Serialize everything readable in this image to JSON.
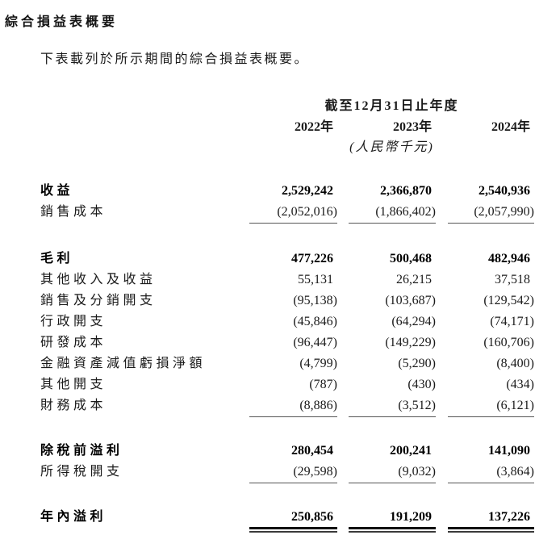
{
  "page": {
    "title": "綜合損益表概要",
    "intro": "下表載列於所示期間的綜合損益表概要。"
  },
  "table": {
    "period_header": "截至12月31日止年度",
    "unit_note": "(人民幣千元)",
    "years": [
      "2022年",
      "2023年",
      "2024年"
    ],
    "rows": [
      {
        "label": "收益",
        "values": [
          "2,529,242",
          "2,366,870",
          "2,540,936"
        ],
        "style": "bold"
      },
      {
        "label": "銷售成本",
        "values": [
          "(2,052,016)",
          "(1,866,402)",
          "(2,057,990)"
        ],
        "style": "underline"
      },
      {
        "label": "毛利",
        "values": [
          "477,226",
          "500,468",
          "482,946"
        ],
        "style": "bold"
      },
      {
        "label": "其他收入及收益",
        "values": [
          "55,131",
          "26,215",
          "37,518"
        ],
        "style": "normal"
      },
      {
        "label": "銷售及分銷開支",
        "values": [
          "(95,138)",
          "(103,687)",
          "(129,542)"
        ],
        "style": "normal"
      },
      {
        "label": "行政開支",
        "values": [
          "(45,846)",
          "(64,294)",
          "(74,171)"
        ],
        "style": "normal"
      },
      {
        "label": "研發成本",
        "values": [
          "(96,447)",
          "(149,229)",
          "(160,706)"
        ],
        "style": "normal"
      },
      {
        "label": "金融資產減值虧損淨額",
        "values": [
          "(4,799)",
          "(5,290)",
          "(8,400)"
        ],
        "style": "normal"
      },
      {
        "label": "其他開支",
        "values": [
          "(787)",
          "(430)",
          "(434)"
        ],
        "style": "normal"
      },
      {
        "label": "財務成本",
        "values": [
          "(8,886)",
          "(3,512)",
          "(6,121)"
        ],
        "style": "underline"
      },
      {
        "label": "除稅前溢利",
        "values": [
          "280,454",
          "200,241",
          "141,090"
        ],
        "style": "bold"
      },
      {
        "label": "所得稅開支",
        "values": [
          "(29,598)",
          "(9,032)",
          "(3,864)"
        ],
        "style": "underline"
      },
      {
        "label": "年內溢利",
        "values": [
          "250,856",
          "191,209",
          "137,226"
        ],
        "style": "bold-double-rule"
      }
    ]
  },
  "colors": {
    "text": "#1a1a1a",
    "single_rule": "#555555",
    "double_rule_top": "#111111",
    "double_rule_bottom": "#3a3a3a"
  }
}
